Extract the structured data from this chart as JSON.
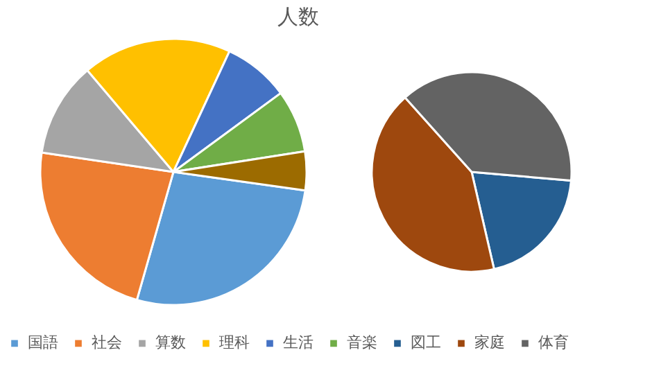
{
  "chart_data": [
    {
      "type": "pie",
      "title": "人数",
      "legend": "bottom",
      "categories": [
        "国語",
        "社会",
        "算数",
        "理科",
        "生活",
        "音楽",
        null
      ],
      "values": [
        27.2,
        22.9,
        11.5,
        18.1,
        8.0,
        7.6,
        4.7
      ],
      "colors": [
        "#5b9bd5",
        "#ed7d31",
        "#a5a5a5",
        "#ffc000",
        "#4472c4",
        "#70ad47",
        "#9c6b00"
      ]
    },
    {
      "type": "pie",
      "legend": "bottom",
      "categories": [
        "図工",
        "家庭",
        "体育"
      ],
      "values": [
        20,
        42,
        38
      ],
      "colors": [
        "#255e91",
        "#9e480e",
        "#636363"
      ]
    }
  ]
}
